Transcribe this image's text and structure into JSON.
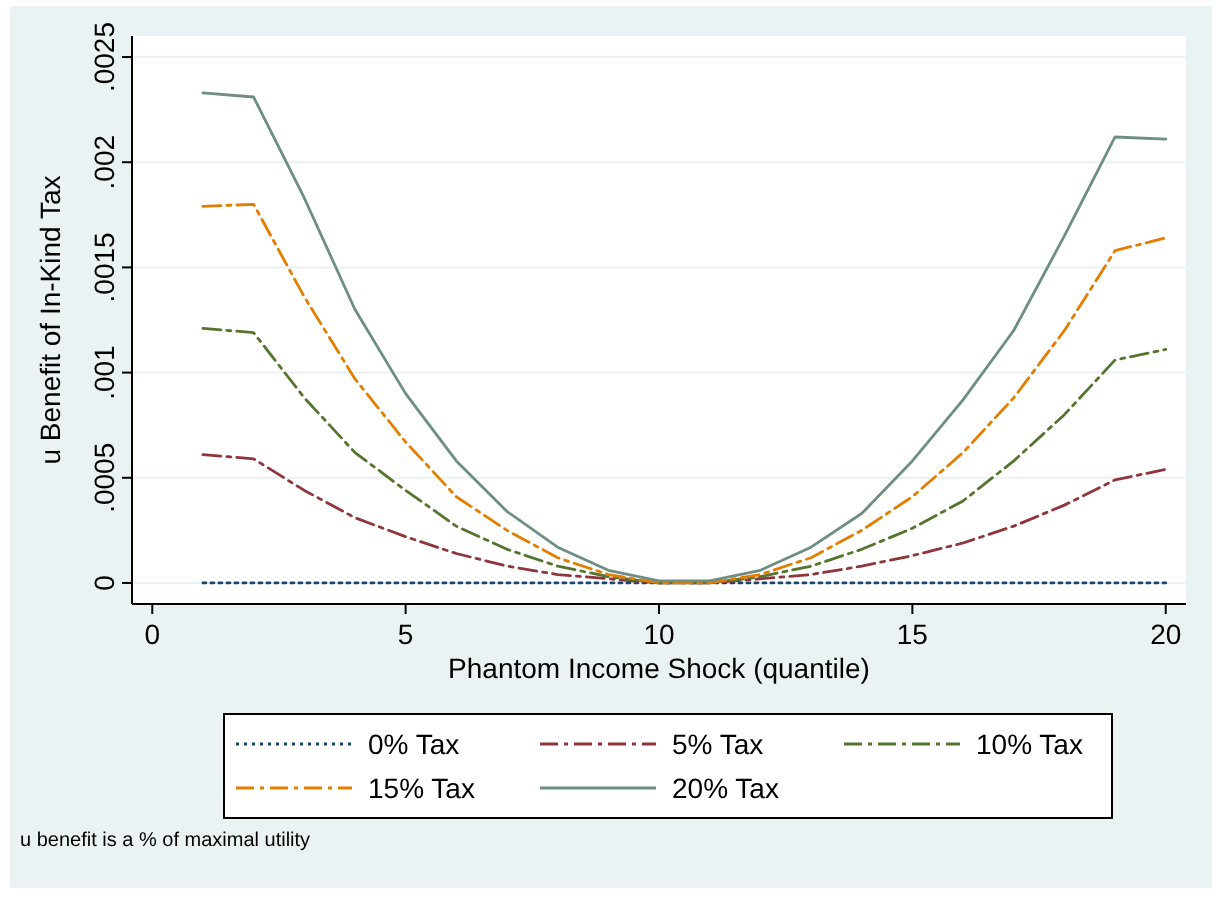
{
  "chart_data": {
    "type": "line",
    "xlabel": "Phantom Income Shock (quantile)",
    "ylabel": "u Benefit of In-Kind Tax",
    "x": [
      1,
      2,
      3,
      4,
      5,
      6,
      7,
      8,
      9,
      10,
      11,
      12,
      13,
      14,
      15,
      16,
      17,
      18,
      19,
      20
    ],
    "series": [
      {
        "name": "0% Tax",
        "color": "#1a476f",
        "line_style": "dotted",
        "values": [
          0,
          0,
          0,
          0,
          0,
          0,
          0,
          0,
          0,
          0,
          0,
          0,
          0,
          0,
          0,
          0,
          0,
          0,
          0,
          0
        ]
      },
      {
        "name": "5% Tax",
        "color": "#90353b",
        "line_style": "dashed",
        "values": [
          0.00061,
          0.00059,
          0.00044,
          0.00031,
          0.00022,
          0.00014,
          8e-05,
          4e-05,
          2e-05,
          0,
          0,
          2e-05,
          4e-05,
          8e-05,
          0.00013,
          0.00019,
          0.00027,
          0.00037,
          0.00049,
          0.00054
        ]
      },
      {
        "name": "10% Tax",
        "color": "#55752f",
        "line_style": "dashed",
        "values": [
          0.00121,
          0.00119,
          0.00088,
          0.00062,
          0.00044,
          0.00027,
          0.00016,
          8e-05,
          3e-05,
          0,
          0,
          3e-05,
          8e-05,
          0.00016,
          0.00026,
          0.00039,
          0.00058,
          0.0008,
          0.00106,
          0.00111
        ]
      },
      {
        "name": "15% Tax",
        "color": "#e37e00",
        "line_style": "dashed",
        "values": [
          0.00179,
          0.0018,
          0.00136,
          0.00097,
          0.00067,
          0.00041,
          0.00025,
          0.00012,
          4e-05,
          0,
          0,
          4e-05,
          0.00012,
          0.00025,
          0.00041,
          0.00062,
          0.00088,
          0.0012,
          0.00158,
          0.00164
        ]
      },
      {
        "name": "20% Tax",
        "color": "#6e8e84",
        "line_style": "solid",
        "values": [
          0.00233,
          0.00231,
          0.00183,
          0.0013,
          0.0009,
          0.00058,
          0.00034,
          0.00017,
          6e-05,
          1e-05,
          1e-05,
          6e-05,
          0.00017,
          0.00033,
          0.00058,
          0.00087,
          0.0012,
          0.00165,
          0.00212,
          0.00211
        ]
      }
    ],
    "xlim": [
      -0.4,
      20.4
    ],
    "xticks": [
      0,
      5,
      10,
      15,
      20
    ],
    "ylim": [
      -0.0001,
      0.0026
    ],
    "yticks": [
      0,
      {
        "value": 0.0005,
        "label": ".0005"
      },
      {
        "value": 0.001,
        "label": ".001"
      },
      {
        "value": 0.0015,
        "label": ".0015"
      },
      {
        "value": 0.002,
        "label": ".002"
      },
      {
        "value": 0.0025,
        "label": ".0025"
      }
    ],
    "grid": "y",
    "legend": "bottom",
    "marker": "none",
    "annotations": [
      "u benefit is a % of maximal utility"
    ]
  }
}
